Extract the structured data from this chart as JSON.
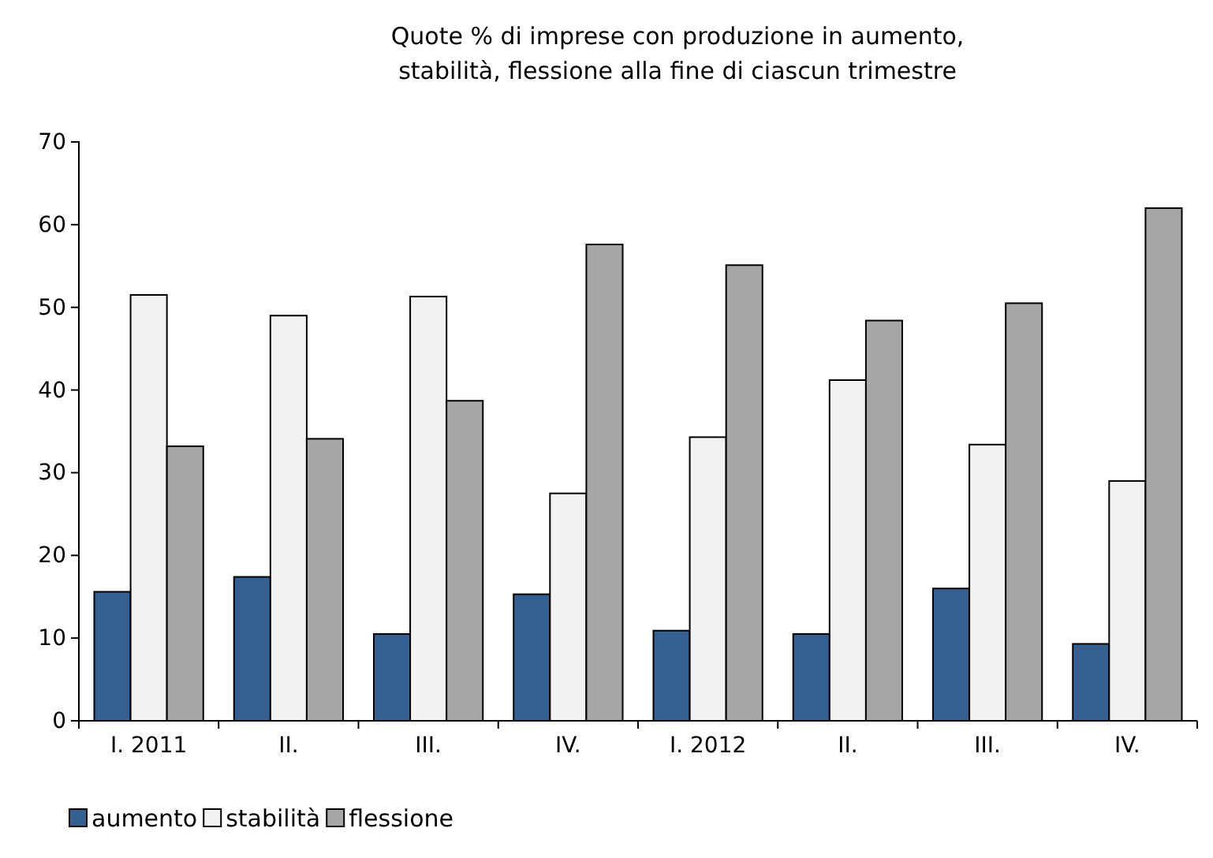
{
  "chart_data": {
    "type": "bar",
    "title": "Quote % di imprese con produzione in aumento,\nstabilità, flessione alla fine di ciascun trimestre",
    "categories": [
      "I. 2011",
      "II.",
      "III.",
      "IV.",
      "I. 2012",
      "II.",
      "III.",
      "IV."
    ],
    "series": [
      {
        "name": "aumento",
        "color": "#365f91",
        "values": [
          15.6,
          17.4,
          10.5,
          15.3,
          10.9,
          10.5,
          16.0,
          9.3
        ]
      },
      {
        "name": "stabilità",
        "color": "#f2f2f2",
        "values": [
          51.5,
          49.0,
          51.3,
          27.5,
          34.3,
          41.2,
          33.4,
          29.0
        ]
      },
      {
        "name": "flessione",
        "color": "#a6a6a6",
        "values": [
          33.2,
          34.1,
          38.7,
          57.6,
          55.1,
          48.4,
          50.5,
          62.0
        ]
      }
    ],
    "ylim": [
      0,
      70
    ],
    "yticks": [
      0,
      10,
      20,
      30,
      40,
      50,
      60,
      70
    ],
    "grid": false,
    "legend": "bottom left"
  }
}
